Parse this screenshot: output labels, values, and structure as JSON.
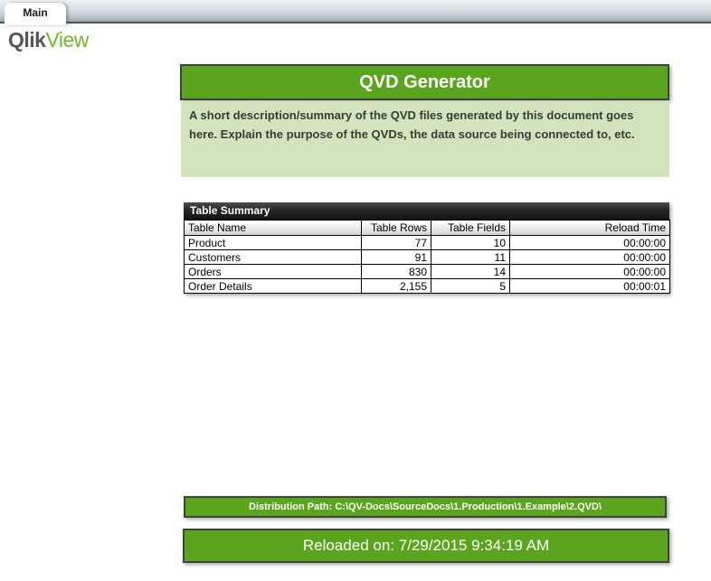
{
  "tab_bar": {
    "tabs": [
      {
        "label": "Main",
        "active": true
      }
    ]
  },
  "logo": {
    "part1": "Qlik",
    "part2": "View"
  },
  "header": {
    "title": "QVD Generator"
  },
  "description": {
    "text": "A short description/summary of the QVD files generated by this document goes here. Explain the purpose of the QVDs, the data source being connected to, etc."
  },
  "table_summary": {
    "caption": "Table Summary",
    "columns": [
      "Table Name",
      "Table Rows",
      "Table Fields",
      "Reload Time"
    ],
    "rows": [
      {
        "name": "Product",
        "rows": "77",
        "fields": "10",
        "reload_time": "00:00:00"
      },
      {
        "name": "Customers",
        "rows": "91",
        "fields": "11",
        "reload_time": "00:00:00"
      },
      {
        "name": "Orders",
        "rows": "830",
        "fields": "14",
        "reload_time": "00:00:00"
      },
      {
        "name": "Order Details",
        "rows": "2,155",
        "fields": "5",
        "reload_time": "00:00:01"
      }
    ]
  },
  "footer": {
    "distribution_path": "Distribution Path: C:\\QV-Docs\\SourceDocs\\1.Production\\1.Example\\2.QVD\\",
    "reloaded_on": "Reloaded on: 7/29/2015 9:34:19 AM"
  },
  "colors": {
    "accent_green": "#5aa41e",
    "light_green": "#d2e4bb",
    "caption_dark": "#262626",
    "logo_gray": "#55565a",
    "logo_green": "#74b62c"
  }
}
